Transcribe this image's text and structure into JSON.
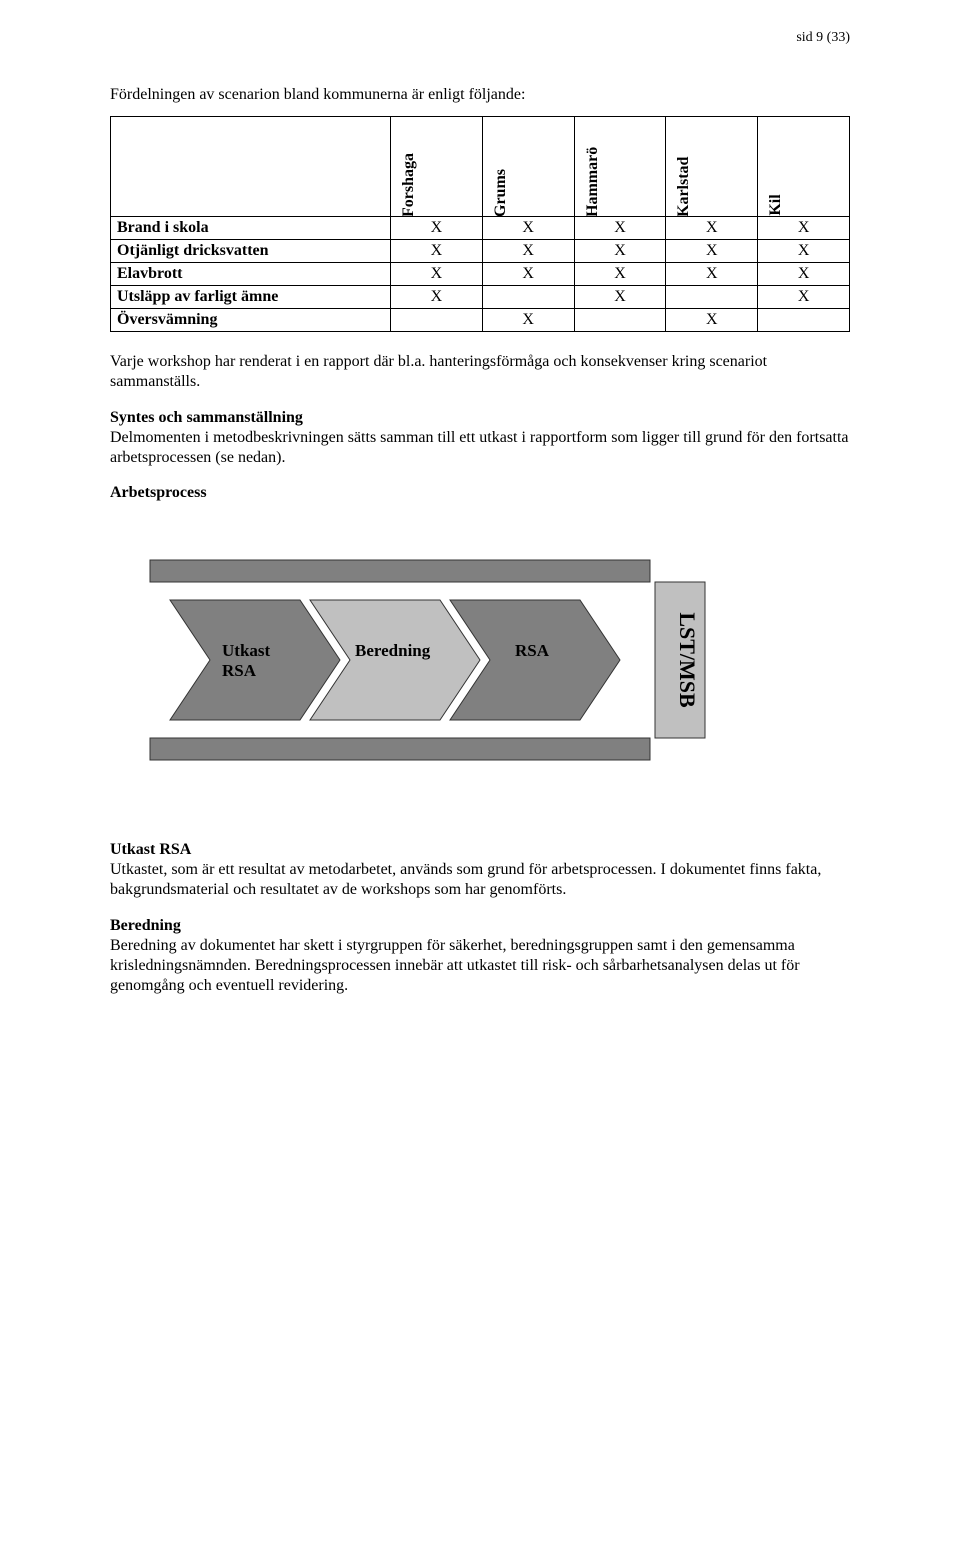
{
  "pageHeader": "sid 9 (33)",
  "intro": "Fördelningen av scenarion bland kommunerna är enligt följande:",
  "table": {
    "columns": [
      "Forshaga",
      "Grums",
      "Hammarö",
      "Karlstad",
      "Kil"
    ],
    "rows": [
      {
        "label": "Brand i skola",
        "cells": [
          "X",
          "X",
          "X",
          "X",
          "X"
        ]
      },
      {
        "label": "Otjänligt dricksvatten",
        "cells": [
          "X",
          "X",
          "X",
          "X",
          "X"
        ]
      },
      {
        "label": "Elavbrott",
        "cells": [
          "X",
          "X",
          "X",
          "X",
          "X"
        ]
      },
      {
        "label": "Utsläpp av farligt ämne",
        "cells": [
          "X",
          "",
          "X",
          "",
          "X"
        ]
      },
      {
        "label": "Översvämning",
        "cells": [
          "",
          "X",
          "",
          "X",
          ""
        ]
      }
    ]
  },
  "p1": "Varje workshop har renderat i en rapport där bl.a. hanteringsförmåga och konsekvenser kring scenariot sammanställs.",
  "sHead1": "Syntes och sammanställning",
  "p2": "Delmomenten i metodbeskrivningen sätts samman till ett utkast i rapportform som ligger till grund för den fortsatta arbetsprocessen (se nedan).",
  "sHead2": "Arbetsprocess",
  "process": {
    "chevrons": [
      {
        "lines": [
          "Utkast",
          "RSA"
        ],
        "fill": "#808080"
      },
      {
        "lines": [
          "Beredning"
        ],
        "fill": "#c0c0c0"
      },
      {
        "lines": [
          "RSA"
        ],
        "fill": "#808080"
      }
    ],
    "endBox": {
      "label": "LST/MSB",
      "fill": "#c0c0c0"
    },
    "frameTop": {
      "fill": "#808080"
    },
    "frameBot": {
      "fill": "#808080"
    },
    "stroke": "#333333"
  },
  "sHead3": "Utkast RSA",
  "p3": "Utkastet, som är ett resultat av metodarbetet, används som grund för arbetsprocessen. I dokumentet finns fakta, bakgrundsmaterial och resultatet av de workshops som har genomförts.",
  "sHead4": "Beredning",
  "p4": "Beredning av dokumentet har skett i styrgruppen för säkerhet, beredningsgruppen samt i den gemensamma krisledningsnämnden. Beredningsprocessen innebär att utkastet till risk- och sårbarhetsanalysen delas ut för genomgång och eventuell revidering."
}
